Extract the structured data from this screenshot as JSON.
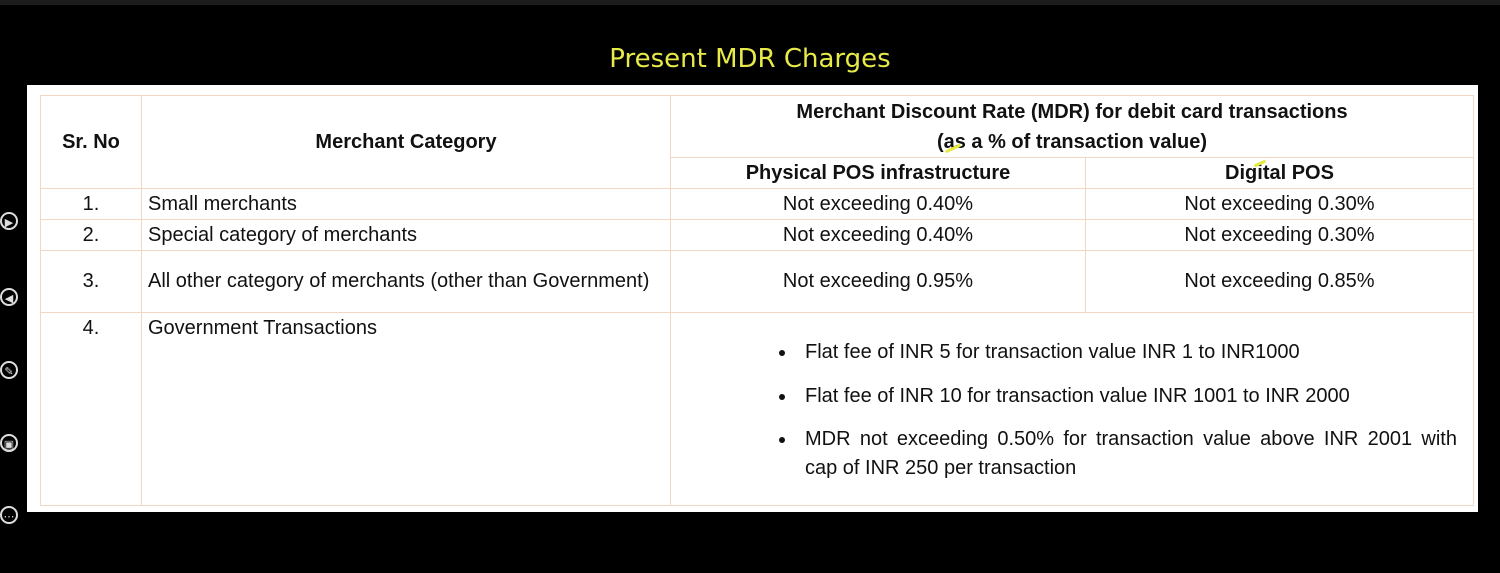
{
  "slide_title": "Present MDR Charges",
  "table": {
    "head": {
      "sr_no": "Sr. No",
      "category": "Merchant Category",
      "mdr_line1": "Merchant Discount Rate (MDR) for debit card transactions",
      "mdr_line2": "(as a % of transaction value)",
      "physical": "Physical POS infrastructure",
      "digital": "Digital POS"
    },
    "rows": [
      {
        "sr": "1.",
        "category": "Small merchants",
        "physical": "Not exceeding 0.40%",
        "digital": "Not exceeding 0.30%"
      },
      {
        "sr": "2.",
        "category": "Special category of merchants",
        "physical": "Not exceeding 0.40%",
        "digital": "Not exceeding 0.30%"
      },
      {
        "sr": "3.",
        "category": "All other category of merchants (other than Government)",
        "physical": "Not exceeding 0.95%",
        "digital": "Not exceeding 0.85%"
      },
      {
        "sr": "4.",
        "category": "Government Transactions",
        "bullets": [
          "Flat fee of INR 5 for transaction value INR 1 to INR1000",
          "Flat fee of INR 10 for transaction value INR 1001 to INR 2000",
          "MDR not exceeding 0.50% for transaction value above INR 2001 with cap of INR 250 per transaction"
        ]
      }
    ]
  },
  "side_toolbar": {
    "icons": [
      "next-icon",
      "previous-icon",
      "pen-icon",
      "screen-icon",
      "more-icon"
    ],
    "color": "#dddddd"
  },
  "colors": {
    "title": "#e8ea4a",
    "border": "#f1d7c4",
    "background": "#000000"
  }
}
